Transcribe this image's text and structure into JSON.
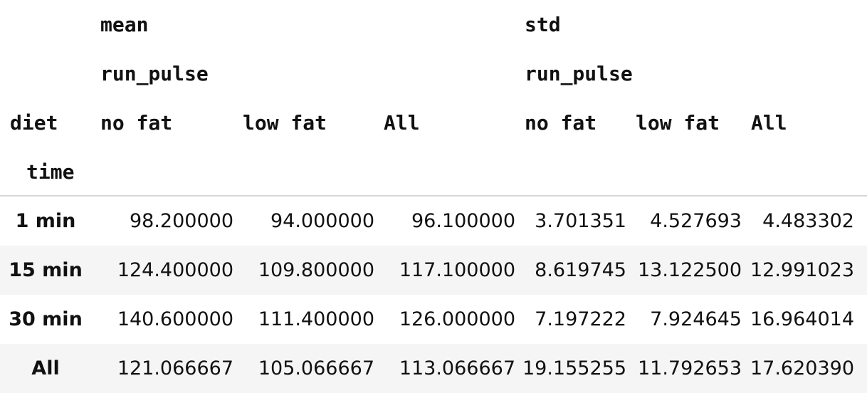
{
  "header": {
    "level0": {
      "mean": "mean",
      "std": "std"
    },
    "level1": {
      "mean": "run_pulse",
      "std": "run_pulse"
    },
    "columns_name": "diet",
    "columns": [
      "no fat",
      "low fat",
      "All",
      "no fat",
      "low fat",
      "All"
    ],
    "index_name": "time"
  },
  "rows": [
    {
      "label": "1 min",
      "values": [
        "98.200000",
        "94.000000",
        "96.100000",
        "3.701351",
        "4.527693",
        "4.483302"
      ]
    },
    {
      "label": "15 min",
      "values": [
        "124.400000",
        "109.800000",
        "117.100000",
        "8.619745",
        "13.122500",
        "12.991023"
      ]
    },
    {
      "label": "30 min",
      "values": [
        "140.600000",
        "111.400000",
        "126.000000",
        "7.197222",
        "7.924645",
        "16.964014"
      ]
    },
    {
      "label": "All",
      "values": [
        "121.066667",
        "105.066667",
        "113.066667",
        "19.155255",
        "11.792653",
        "17.620390"
      ]
    }
  ]
}
